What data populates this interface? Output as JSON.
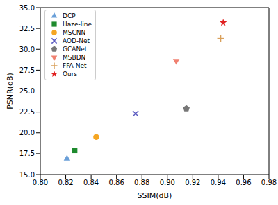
{
  "chart_data": {
    "type": "scatter",
    "x_label": "SSIM(dB)",
    "y_label": "PSNR(dB)",
    "xlim": [
      0.8,
      0.98
    ],
    "ylim": [
      15,
      35
    ],
    "xticks": [
      {
        "value": 0.8,
        "label": "0.80"
      },
      0.82,
      0.84,
      0.86,
      0.88,
      {
        "value": 0.9,
        "label": "0.90"
      },
      0.92,
      0.94,
      0.96,
      0.98
    ],
    "yticks": [
      {
        "value": 15,
        "label": "15.0"
      },
      17.5,
      {
        "value": 20,
        "label": "20.0"
      },
      22.5,
      {
        "value": 25,
        "label": "25.0"
      },
      27.5,
      {
        "value": 30,
        "label": "30.0"
      },
      32.5,
      {
        "value": 35,
        "label": "35.0"
      }
    ],
    "grid": false,
    "legend": "upper left",
    "series": [
      {
        "name": "DCP",
        "color": "#6a9fd8",
        "marker": "triangle",
        "x": [
          0.821
        ],
        "y": [
          16.9
        ]
      },
      {
        "name": "Haze-line",
        "color": "#1e8a2e",
        "marker": "square",
        "x": [
          0.827
        ],
        "y": [
          17.9
        ]
      },
      {
        "name": "MSCNN",
        "color": "#f5a623",
        "marker": "circle",
        "x": [
          0.844
        ],
        "y": [
          19.5
        ]
      },
      {
        "name": "AOD-Net",
        "color": "#5a5ac0",
        "marker": "x",
        "x": [
          0.875
        ],
        "y": [
          22.3
        ]
      },
      {
        "name": "GCANet",
        "color": "#777777",
        "marker": "pentagon",
        "x": [
          0.915
        ],
        "y": [
          22.9
        ]
      },
      {
        "name": "MSBDN",
        "color": "#f08070",
        "marker": "triangle_down",
        "x": [
          0.907
        ],
        "y": [
          28.6
        ]
      },
      {
        "name": "FFA-Net",
        "color": "#d9a05b",
        "marker": "plus",
        "x": [
          0.942
        ],
        "y": [
          31.3
        ]
      },
      {
        "name": "Ours",
        "color": "#e02020",
        "marker": "star",
        "x": [
          0.944
        ],
        "y": [
          33.2
        ]
      }
    ]
  }
}
